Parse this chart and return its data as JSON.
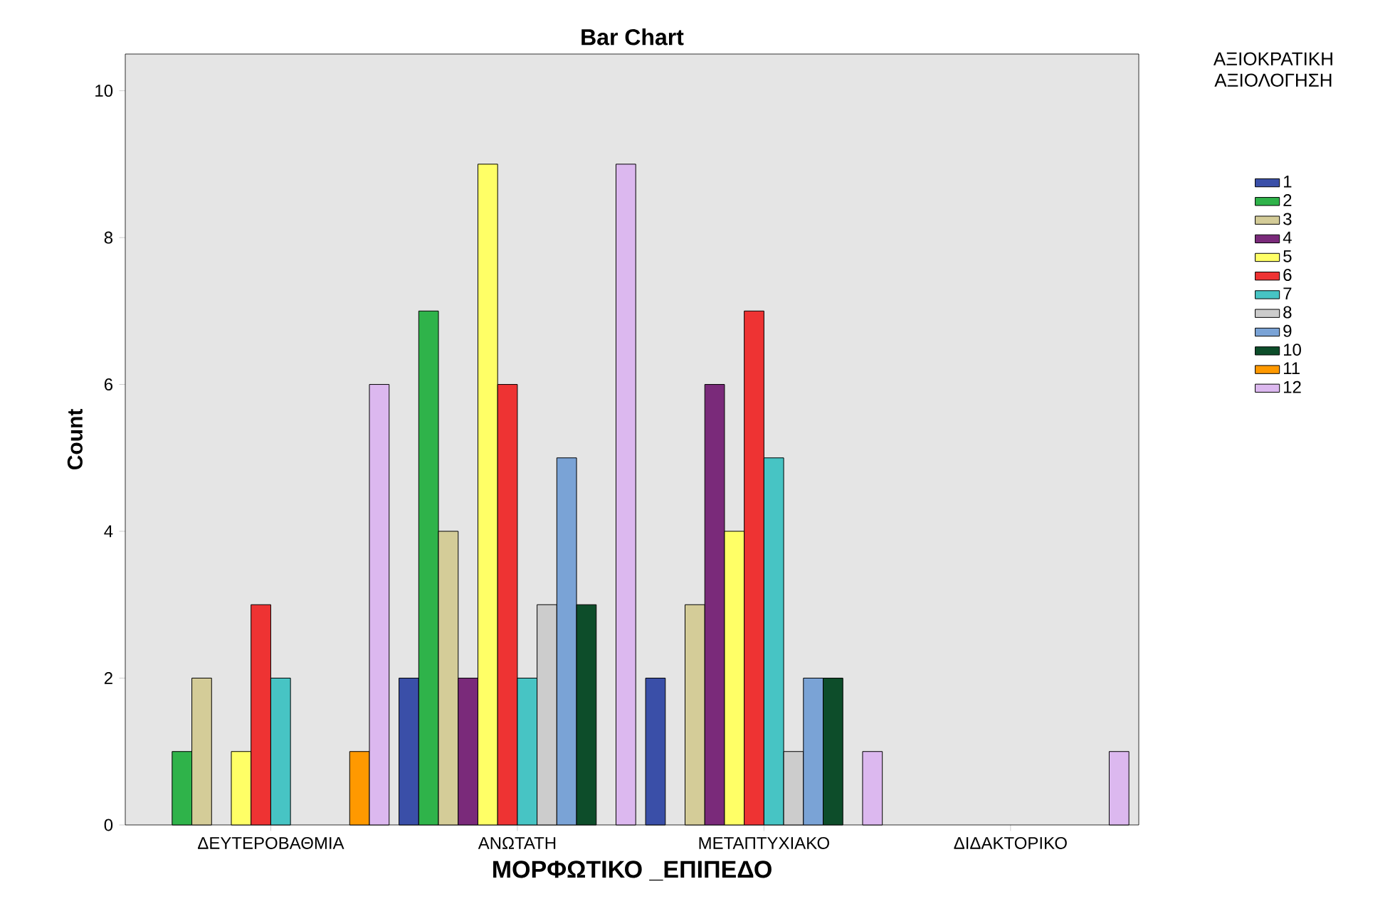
{
  "chart_data": {
    "type": "bar",
    "title": "Bar Chart",
    "xlabel": "ΜΟΡΦΩΤΙΚΟ _ΕΠΙΠΕΔΟ",
    "ylabel": "Count",
    "legend_title": "ΑΞΙΟΚΡΑΤΙΚΗ ΑΞΙΟΛΟΓΗΣΗ",
    "legend": "right",
    "grid": false,
    "categories": [
      "ΔΕΥΤΕΡΟΒΑΘΜΙΑ",
      "ΑΝΩΤΑΤΗ",
      "ΜΕΤΑΠΤΥΧΙΑΚΟ",
      "ΔΙΔΑΚΤΟΡΙΚΟ"
    ],
    "ylim": [
      0,
      10.5
    ],
    "yticks": [
      0,
      2,
      4,
      6,
      8,
      10
    ],
    "series": [
      {
        "name": "1",
        "color": "#3a4fa8",
        "values": [
          null,
          2,
          2,
          null
        ]
      },
      {
        "name": "2",
        "color": "#2fb34a",
        "values": [
          1,
          7,
          null,
          null
        ]
      },
      {
        "name": "3",
        "color": "#d4cc98",
        "values": [
          2,
          4,
          3,
          null
        ]
      },
      {
        "name": "4",
        "color": "#7a2a7a",
        "values": [
          null,
          2,
          6,
          null
        ]
      },
      {
        "name": "5",
        "color": "#ffff66",
        "values": [
          1,
          9,
          4,
          null
        ]
      },
      {
        "name": "6",
        "color": "#ee3333",
        "values": [
          3,
          6,
          7,
          null
        ]
      },
      {
        "name": "7",
        "color": "#47c4c4",
        "values": [
          2,
          2,
          5,
          null
        ]
      },
      {
        "name": "8",
        "color": "#cccccc",
        "values": [
          null,
          3,
          1,
          null
        ]
      },
      {
        "name": "9",
        "color": "#7aa3d6",
        "values": [
          null,
          5,
          2,
          null
        ]
      },
      {
        "name": "10",
        "color": "#0d4d2a",
        "values": [
          null,
          3,
          2,
          null
        ]
      },
      {
        "name": "11",
        "color": "#ff9900",
        "values": [
          1,
          null,
          null,
          null
        ]
      },
      {
        "name": "12",
        "color": "#dcb8ef",
        "values": [
          6,
          9,
          1,
          1
        ]
      }
    ]
  }
}
